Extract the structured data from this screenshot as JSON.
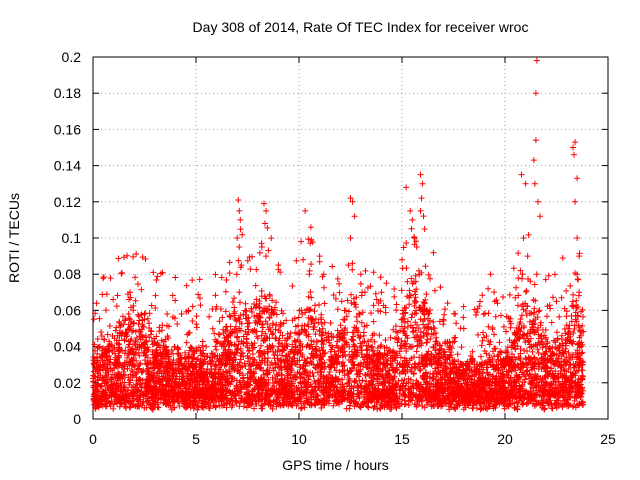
{
  "chart_data": {
    "type": "scatter",
    "title": "Day 308 of 2014, Rate Of TEC Index for receiver wroc",
    "xlabel": "GPS time / hours",
    "ylabel": "ROTI / TECUs",
    "xlim": [
      0,
      25
    ],
    "ylim": [
      0,
      0.2
    ],
    "xticks": [
      0,
      5,
      10,
      15,
      20,
      25
    ],
    "yticks": [
      0,
      0.02,
      0.04,
      0.06,
      0.08,
      0.1,
      0.12,
      0.14,
      0.16,
      0.18,
      0.2
    ],
    "xtick_labels": [
      "0",
      "5",
      "10",
      "15",
      "20",
      "25"
    ],
    "ytick_labels": [
      "0",
      "0.02",
      "0.04",
      "0.06",
      "0.08",
      "0.1",
      "0.12",
      "0.14",
      "0.16",
      "0.18",
      "0.2"
    ],
    "grid": true,
    "marker": "+",
    "color": "#ff0000",
    "data_x_range": [
      0,
      23.8
    ],
    "baseline_range": [
      0.005,
      0.035
    ],
    "series": [
      {
        "values_note": "",
        "points": [
          [
            1.7,
            0.069
          ],
          [
            1.8,
            0.07
          ],
          [
            1.75,
            0.066
          ],
          [
            2.5,
            0.058
          ],
          [
            3.6,
            0.058
          ],
          [
            4.3,
            0.058
          ],
          [
            6.0,
            0.062
          ],
          [
            6.5,
            0.045
          ],
          [
            7.05,
            0.121
          ],
          [
            7.1,
            0.115
          ],
          [
            7.15,
            0.11
          ],
          [
            7.0,
            0.1
          ],
          [
            7.1,
            0.095
          ],
          [
            7.2,
            0.085
          ],
          [
            7.1,
            0.07
          ],
          [
            8.3,
            0.119
          ],
          [
            8.4,
            0.115
          ],
          [
            8.35,
            0.108
          ],
          [
            8.2,
            0.095
          ],
          [
            8.4,
            0.09
          ],
          [
            9.0,
            0.085
          ],
          [
            10.1,
            0.098
          ],
          [
            10.3,
            0.115
          ],
          [
            10.2,
            0.088
          ],
          [
            10.5,
            0.08
          ],
          [
            11.0,
            0.09
          ],
          [
            11.2,
            0.08
          ],
          [
            12.5,
            0.122
          ],
          [
            12.6,
            0.12
          ],
          [
            12.7,
            0.112
          ],
          [
            12.5,
            0.1
          ],
          [
            12.4,
            0.085
          ],
          [
            13.0,
            0.08
          ],
          [
            13.2,
            0.07
          ],
          [
            14.0,
            0.07
          ],
          [
            15.0,
            0.088
          ],
          [
            15.2,
            0.128
          ],
          [
            15.4,
            0.115
          ],
          [
            15.5,
            0.11
          ],
          [
            15.6,
            0.1
          ],
          [
            15.9,
            0.135
          ],
          [
            16.0,
            0.13
          ],
          [
            15.95,
            0.122
          ],
          [
            15.9,
            0.115
          ],
          [
            16.1,
            0.105
          ],
          [
            17.0,
            0.055
          ],
          [
            18.0,
            0.05
          ],
          [
            19.3,
            0.08
          ],
          [
            19.5,
            0.065
          ],
          [
            20.8,
            0.135
          ],
          [
            21.0,
            0.13
          ],
          [
            20.9,
            0.1
          ],
          [
            21.1,
            0.09
          ],
          [
            20.85,
            0.08
          ],
          [
            21.4,
            0.143
          ],
          [
            21.55,
            0.198
          ],
          [
            21.5,
            0.18
          ],
          [
            21.5,
            0.154
          ],
          [
            21.45,
            0.13
          ],
          [
            21.6,
            0.12
          ],
          [
            21.7,
            0.112
          ],
          [
            22.5,
            0.065
          ],
          [
            23.3,
            0.15
          ],
          [
            23.4,
            0.153
          ],
          [
            23.35,
            0.146
          ],
          [
            23.5,
            0.133
          ],
          [
            23.4,
            0.12
          ],
          [
            23.5,
            0.1
          ],
          [
            23.6,
            0.09
          ],
          [
            23.5,
            0.08
          ],
          [
            23.6,
            0.07
          ]
        ]
      }
    ]
  }
}
